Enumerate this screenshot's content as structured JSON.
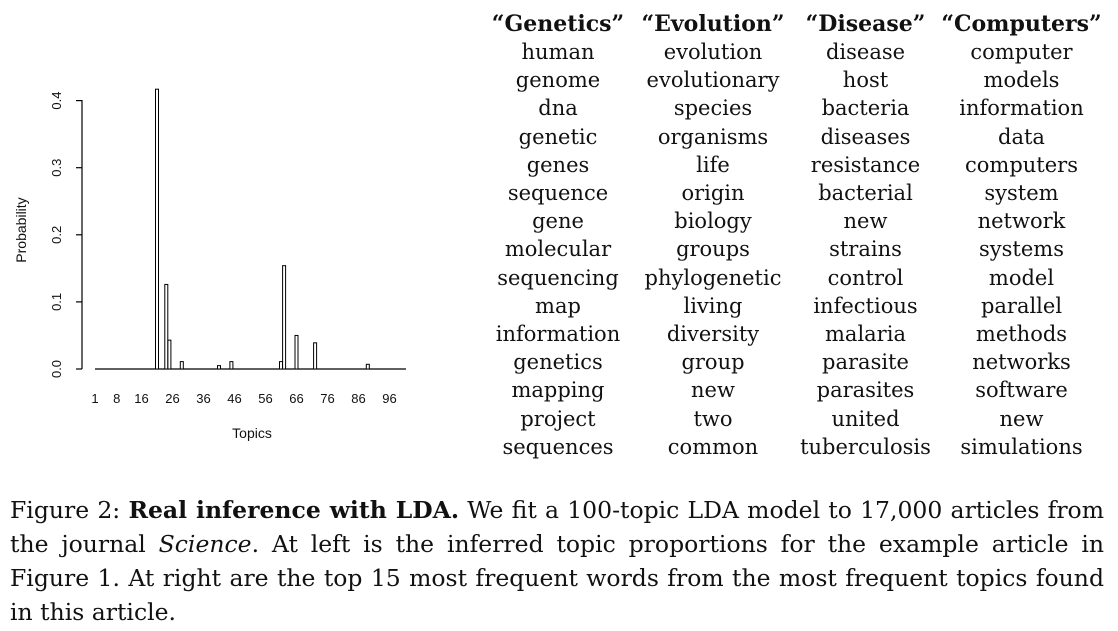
{
  "chart_data": {
    "type": "bar",
    "xlabel": "Topics",
    "ylabel": "Probability",
    "ylim": [
      0,
      0.45
    ],
    "xlim": [
      0,
      100
    ],
    "x_ticks": [
      1,
      8,
      16,
      26,
      36,
      46,
      56,
      66,
      76,
      86,
      96
    ],
    "y_ticks": [
      "0.0",
      "0.1",
      "0.2",
      "0.3",
      "0.4"
    ],
    "bars": [
      {
        "topic": 21,
        "value": 0.417
      },
      {
        "topic": 24,
        "value": 0.126
      },
      {
        "topic": 25,
        "value": 0.043
      },
      {
        "topic": 29,
        "value": 0.011
      },
      {
        "topic": 41,
        "value": 0.005
      },
      {
        "topic": 45,
        "value": 0.011
      },
      {
        "topic": 61,
        "value": 0.011
      },
      {
        "topic": 62,
        "value": 0.154
      },
      {
        "topic": 66,
        "value": 0.05
      },
      {
        "topic": 72,
        "value": 0.039
      },
      {
        "topic": 89,
        "value": 0.007
      }
    ]
  },
  "topic_table": [
    {
      "title": "“Genetics”",
      "words": [
        "human",
        "genome",
        "dna",
        "genetic",
        "genes",
        "sequence",
        "gene",
        "molecular",
        "sequencing",
        "map",
        "information",
        "genetics",
        "mapping",
        "project",
        "sequences"
      ]
    },
    {
      "title": "“Evolution”",
      "words": [
        "evolution",
        "evolutionary",
        "species",
        "organisms",
        "life",
        "origin",
        "biology",
        "groups",
        "phylogenetic",
        "living",
        "diversity",
        "group",
        "new",
        "two",
        "common"
      ]
    },
    {
      "title": "“Disease”",
      "words": [
        "disease",
        "host",
        "bacteria",
        "diseases",
        "resistance",
        "bacterial",
        "new",
        "strains",
        "control",
        "infectious",
        "malaria",
        "parasite",
        "parasites",
        "united",
        "tuberculosis"
      ]
    },
    {
      "title": "“Computers”",
      "words": [
        "computer",
        "models",
        "information",
        "data",
        "computers",
        "system",
        "network",
        "systems",
        "model",
        "parallel",
        "methods",
        "networks",
        "software",
        "new",
        "simulations"
      ]
    }
  ],
  "caption": {
    "label": "Figure 2: ",
    "bold": "Real inference with LDA.",
    "text1": " We fit a 100-topic LDA model to 17,000 articles from the journal ",
    "journal": "Science",
    "text2": ". At left is the inferred topic proportions for the example article in Figure 1. At right are the top 15 most frequent words from the most frequent topics found in this article."
  }
}
